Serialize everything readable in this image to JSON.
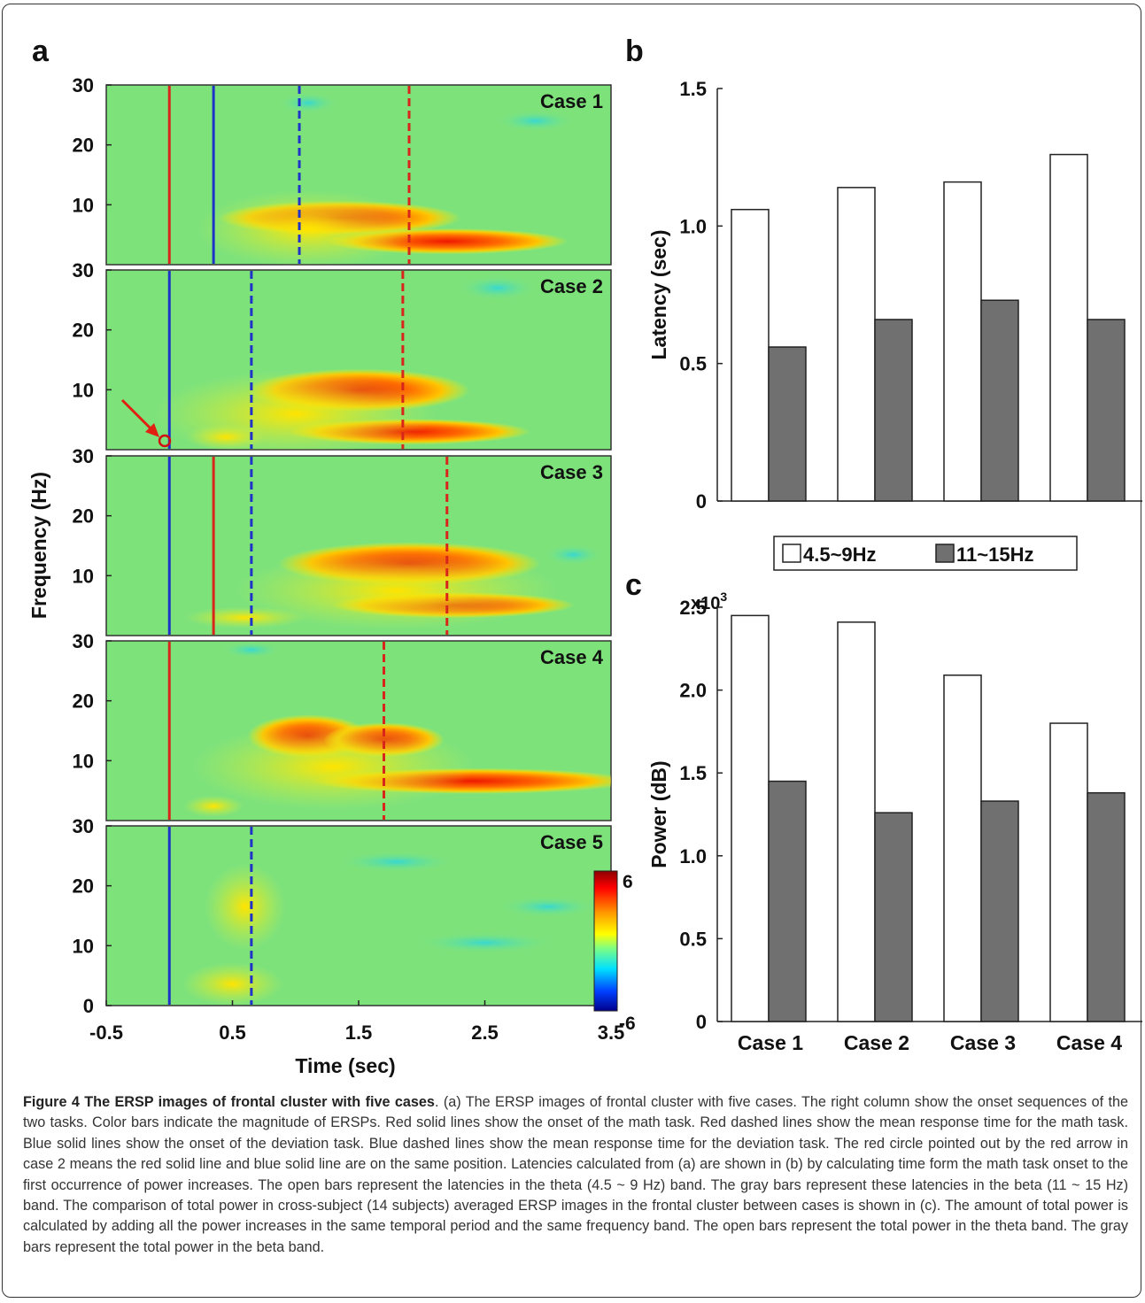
{
  "figure": {
    "panel_labels": [
      "a",
      "b",
      "c"
    ],
    "panel_a": {
      "ylabel": "Frequency (Hz)",
      "xlabel": "Time (sec)",
      "x_ticks": [
        "-0.5",
        "0.5",
        "1.5",
        "2.5",
        "3.5"
      ],
      "y_ticks_top": [
        "30",
        "20",
        "10"
      ],
      "y_ticks_bottom": [
        "30",
        "20",
        "10",
        "0"
      ],
      "colorbar": {
        "max": "6",
        "min": "-6"
      },
      "cases": [
        {
          "label": "Case 1",
          "lines": [
            {
              "t": 0.0,
              "color": "red",
              "style": "solid"
            },
            {
              "t": 0.35,
              "color": "blue",
              "style": "solid"
            },
            {
              "t": 1.03,
              "color": "blue",
              "style": "dashed"
            },
            {
              "t": 1.9,
              "color": "red",
              "style": "dashed"
            }
          ]
        },
        {
          "label": "Case 2",
          "lines": [
            {
              "t": 0.0,
              "color": "blue",
              "style": "solid"
            },
            {
              "t": 0.65,
              "color": "blue",
              "style": "dashed"
            },
            {
              "t": 1.85,
              "color": "red",
              "style": "dashed"
            }
          ]
        },
        {
          "label": "Case 3",
          "lines": [
            {
              "t": 0.0,
              "color": "blue",
              "style": "solid"
            },
            {
              "t": 0.35,
              "color": "red",
              "style": "solid"
            },
            {
              "t": 0.65,
              "color": "blue",
              "style": "dashed"
            },
            {
              "t": 2.2,
              "color": "red",
              "style": "dashed"
            }
          ]
        },
        {
          "label": "Case 4",
          "lines": [
            {
              "t": 0.0,
              "color": "red",
              "style": "solid"
            },
            {
              "t": 1.7,
              "color": "red",
              "style": "dashed"
            }
          ]
        },
        {
          "label": "Case 5",
          "lines": [
            {
              "t": 0.0,
              "color": "blue",
              "style": "solid"
            },
            {
              "t": 0.65,
              "color": "blue",
              "style": "dashed"
            }
          ]
        }
      ]
    }
  },
  "chart_data": [
    {
      "type": "bar",
      "panel": "b",
      "categories": [
        "Case 1",
        "Case 2",
        "Case 3",
        "Case 4"
      ],
      "series": [
        {
          "name": "4.5~9Hz",
          "values": [
            1.06,
            1.14,
            1.16,
            1.26
          ],
          "color": "#ffffff"
        },
        {
          "name": "11~15Hz",
          "values": [
            0.56,
            0.66,
            0.73,
            0.66
          ],
          "color": "#707070"
        }
      ],
      "ylabel": "Latency (sec)",
      "ylim": [
        0,
        1.5
      ],
      "yticks": [
        "0",
        "0.5",
        "1.0",
        "1.5"
      ],
      "legend_placement": "below"
    },
    {
      "type": "bar",
      "panel": "c",
      "categories": [
        "Case 1",
        "Case 2",
        "Case 3",
        "Case 4"
      ],
      "series": [
        {
          "name": "4.5~9Hz",
          "values": [
            2.45,
            2.41,
            2.09,
            1.8
          ],
          "color": "#ffffff"
        },
        {
          "name": "11~15Hz",
          "values": [
            1.45,
            1.26,
            1.33,
            1.38
          ],
          "color": "#707070"
        }
      ],
      "ylabel": "Power (dB)",
      "ylim": [
        0,
        2.5
      ],
      "yticks": [
        "0",
        "0.5",
        "1.0",
        "1.5",
        "2.0",
        "2.5"
      ],
      "multiplier": "x10",
      "multiplier_exp": "3"
    }
  ],
  "caption": {
    "title": "Figure 4 The ERSP images of frontal cluster with five cases",
    "body": ". (a) The ERSP images of frontal cluster with five cases. The right column show the onset sequences of the two tasks. Color bars indicate the magnitude of ERSPs. Red solid lines show the onset of the math task. Red dashed lines show the mean response time for the math task. Blue solid lines show the onset of the deviation task. Blue dashed lines show the mean response time for the deviation task. The red circle pointed out by the red arrow in case 2 means the red solid line and blue solid line are on the same position. Latencies calculated from (a) are shown in (b) by calculating time form the math task onset to the first occurrence of power increases. The open bars represent the latencies in the theta (4.5 ~ 9 Hz) band. The gray bars represent these latencies in the beta (11 ~ 15 Hz) band. The comparison of total power in cross-subject (14 subjects) averaged ERSP images in the frontal cluster between cases is shown in (c). The amount of total power is calculated by adding all the power increases in the same temporal period and the same frequency band. The open bars represent the total power in the theta band. The gray bars represent the total power in the beta band."
  }
}
